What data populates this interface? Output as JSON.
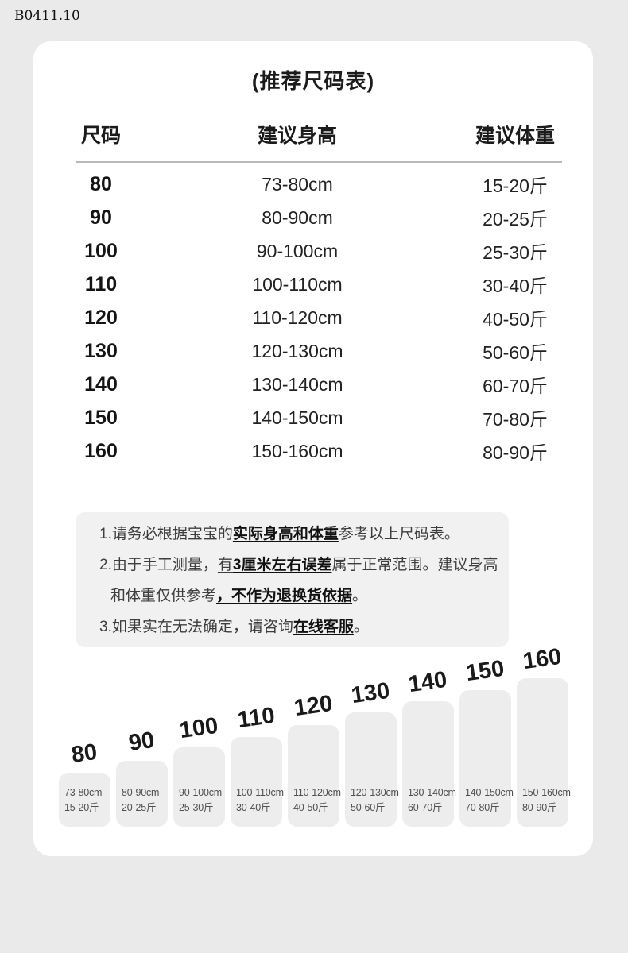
{
  "page": {
    "code": "B0411.10",
    "background_color": "#eaeaea",
    "card_color": "#ffffff",
    "bar_color": "#ededed",
    "notes_bg_color": "#f1f1f1"
  },
  "size_chart": {
    "title": "(推荐尺码表)",
    "columns": {
      "size": "尺码",
      "height": "建议身高",
      "weight": "建议体重"
    },
    "rows": [
      {
        "size": "80",
        "height": "73-80cm",
        "weight": "15-20斤"
      },
      {
        "size": "90",
        "height": "80-90cm",
        "weight": "20-25斤"
      },
      {
        "size": "100",
        "height": "90-100cm",
        "weight": "25-30斤"
      },
      {
        "size": "110",
        "height": "100-110cm",
        "weight": "30-40斤"
      },
      {
        "size": "120",
        "height": "110-120cm",
        "weight": "40-50斤"
      },
      {
        "size": "130",
        "height": "120-130cm",
        "weight": "50-60斤"
      },
      {
        "size": "140",
        "height": "130-140cm",
        "weight": "60-70斤"
      },
      {
        "size": "150",
        "height": "140-150cm",
        "weight": "70-80斤"
      },
      {
        "size": "160",
        "height": "150-160cm",
        "weight": "80-90斤"
      }
    ]
  },
  "notes": {
    "line1_prefix": "1.请务必根据宝宝的",
    "line1_bold": "实际身高和体重",
    "line1_suffix": "参考以上尺码表。",
    "line2_prefix": "2.由于手工测量，",
    "line2_underline": "有",
    "line2_bold": "3厘米左右误差",
    "line2_suffix": "属于正常范围。建议身高",
    "line3_prefix": "和体重仅供参考",
    "line3_bold": "，不作为退换货依据",
    "line3_suffix": "。",
    "line4_prefix": "3.如果实在无法确定，请咨询",
    "line4_bold": "在线客服",
    "line4_suffix": "。"
  },
  "chart_data": {
    "type": "bar",
    "title": "",
    "xlabel": "",
    "ylabel": "",
    "legend": false,
    "grid": false,
    "categories": [
      "80",
      "90",
      "100",
      "110",
      "120",
      "130",
      "140",
      "150",
      "160"
    ],
    "height_labels": [
      "73-80cm",
      "80-90cm",
      "90-100cm",
      "100-110cm",
      "110-120cm",
      "120-130cm",
      "130-140cm",
      "140-150cm",
      "150-160cm"
    ],
    "weight_labels": [
      "15-20斤",
      "20-25斤",
      "25-30斤",
      "30-40斤",
      "40-50斤",
      "50-60斤",
      "60-70斤",
      "70-80斤",
      "80-90斤"
    ],
    "values": [
      68,
      83,
      100,
      113,
      128,
      144,
      158,
      172,
      187
    ],
    "values_note": "decorative bar heights in px, ascending by size"
  }
}
